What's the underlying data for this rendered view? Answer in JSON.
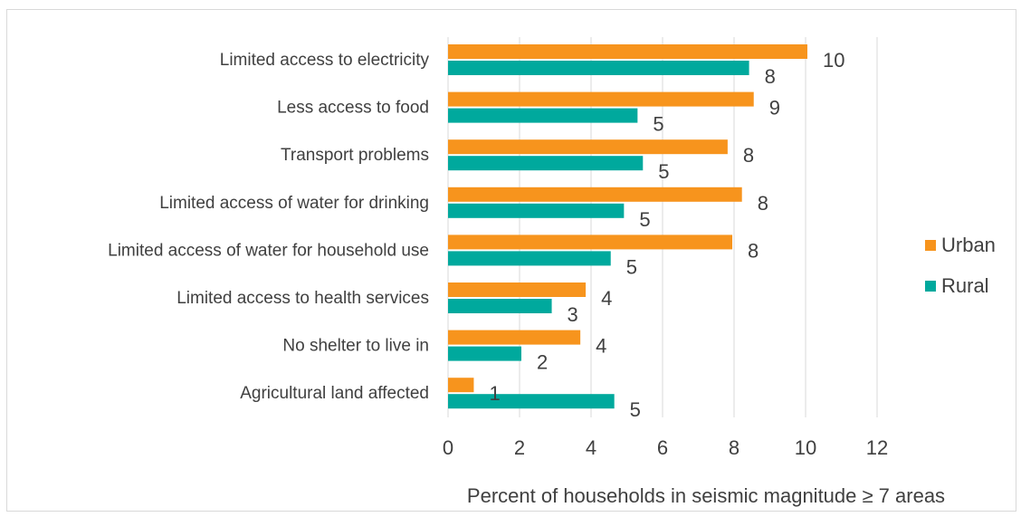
{
  "chart_data": {
    "type": "bar",
    "orientation": "horizontal",
    "categories": [
      "Limited access to electricity",
      "Less access to food",
      "Transport problems",
      "Limited access of water for drinking",
      "Limited access of water for household use",
      "Limited access to health services",
      "No shelter to live in",
      "Agricultural land affected"
    ],
    "series": [
      {
        "name": "Urban",
        "color": "#f7941d",
        "values": [
          10.05,
          8.55,
          7.82,
          8.22,
          7.95,
          3.85,
          3.7,
          0.72
        ],
        "labels": [
          "10",
          "9",
          "8",
          "8",
          "8",
          "4",
          "4",
          "1"
        ]
      },
      {
        "name": "Rural",
        "color": "#00a99d",
        "values": [
          8.42,
          5.3,
          5.45,
          4.92,
          4.55,
          2.9,
          2.05,
          4.65
        ],
        "labels": [
          "8",
          "5",
          "5",
          "5",
          "5",
          "3",
          "2",
          "5"
        ]
      }
    ],
    "xlim": [
      0,
      12
    ],
    "xticks": [
      0,
      2,
      4,
      6,
      8,
      10,
      12
    ],
    "xlabel": "Percent of households in seismic magnitude ≥ 7 areas",
    "ylabel": "",
    "title": "",
    "grid": "vertical",
    "legend": "right"
  }
}
